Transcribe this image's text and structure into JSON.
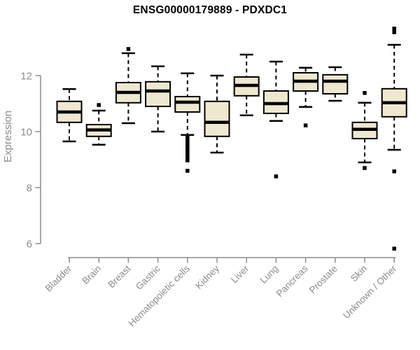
{
  "chart_data": {
    "type": "boxplot",
    "title": "ENSG00000179889 - PDXDC1",
    "xlabel": "",
    "ylabel": "Expression",
    "y_ticks": [
      6,
      8,
      10,
      12
    ],
    "ylim": [
      5.5,
      14.2
    ],
    "grid": false,
    "legend": false,
    "colors": {
      "box_fill": "#EEE8D1",
      "box_border": "#000000",
      "median": "#000000",
      "whisker": "#000000",
      "outlier": "#000000",
      "axis": "#8C8C8C",
      "tick_label": "#8C8C8C",
      "title": "#000000"
    },
    "categories": [
      "Bladder",
      "Brain",
      "Breast",
      "Gastric",
      "Hematopoietic cells",
      "Kidney",
      "Liver",
      "Lung",
      "Pancreas",
      "Prostate",
      "Skin",
      "Unknown / Other"
    ],
    "boxes": [
      {
        "category": "Bladder",
        "low": 9.65,
        "q1": 10.33,
        "median": 10.7,
        "q3": 11.08,
        "high": 11.52,
        "outliers": []
      },
      {
        "category": "Brain",
        "low": 9.53,
        "q1": 9.83,
        "median": 10.06,
        "q3": 10.25,
        "high": 10.75,
        "outliers": [
          10.95
        ]
      },
      {
        "category": "Breast",
        "low": 10.3,
        "q1": 11.03,
        "median": 11.4,
        "q3": 11.75,
        "high": 12.8,
        "outliers": [
          12.95
        ]
      },
      {
        "category": "Gastric",
        "low": 10.0,
        "q1": 10.9,
        "median": 11.45,
        "q3": 11.78,
        "high": 12.33,
        "outliers": []
      },
      {
        "category": "Hematopoietic cells",
        "low": 9.88,
        "q1": 10.7,
        "median": 11.05,
        "q3": 11.25,
        "high": 12.08,
        "outliers": [
          9.82,
          9.75,
          9.68,
          9.6,
          9.53,
          9.47,
          9.4,
          9.33,
          9.25,
          9.18,
          9.1,
          9.03,
          8.97,
          8.6
        ]
      },
      {
        "category": "Kidney",
        "low": 9.25,
        "q1": 9.83,
        "median": 10.33,
        "q3": 11.08,
        "high": 12.0,
        "outliers": []
      },
      {
        "category": "Liver",
        "low": 10.58,
        "q1": 11.28,
        "median": 11.65,
        "q3": 11.95,
        "high": 12.75,
        "outliers": []
      },
      {
        "category": "Lung",
        "low": 10.38,
        "q1": 10.65,
        "median": 11.0,
        "q3": 11.45,
        "high": 12.5,
        "outliers": [
          8.4
        ]
      },
      {
        "category": "Pancreas",
        "low": 10.88,
        "q1": 11.45,
        "median": 11.8,
        "q3": 12.1,
        "high": 12.28,
        "outliers": [
          10.22
        ]
      },
      {
        "category": "Prostate",
        "low": 11.1,
        "q1": 11.35,
        "median": 11.8,
        "q3": 12.03,
        "high": 12.3,
        "outliers": []
      },
      {
        "category": "Skin",
        "low": 8.9,
        "q1": 9.75,
        "median": 10.08,
        "q3": 10.33,
        "high": 11.03,
        "outliers": [
          11.38,
          8.7
        ]
      },
      {
        "category": "Unknown / Other",
        "low": 9.35,
        "q1": 10.53,
        "median": 11.03,
        "q3": 11.53,
        "high": 13.1,
        "outliers": [
          13.68,
          13.55,
          8.58,
          5.82
        ]
      }
    ]
  }
}
